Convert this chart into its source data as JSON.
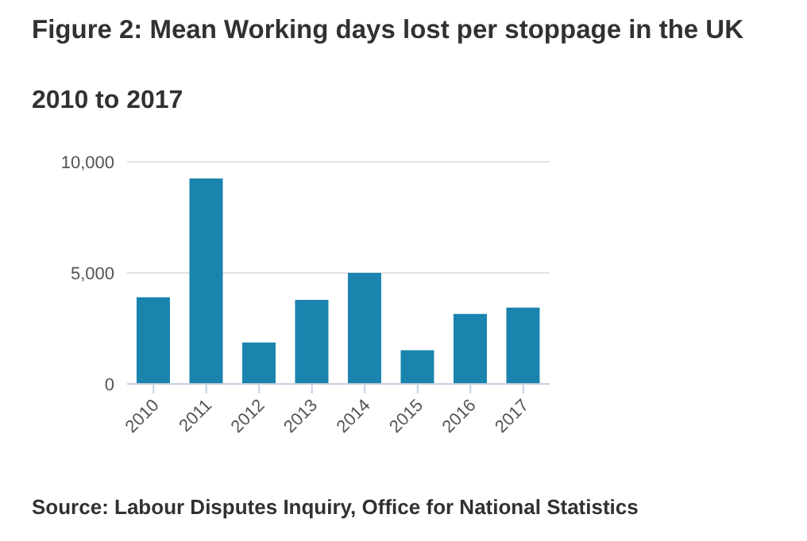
{
  "chart_data": {
    "type": "bar",
    "title": "Figure 2: Mean Working days lost per stoppage in the UK",
    "subtitle": "2010 to 2017",
    "categories": [
      "2010",
      "2011",
      "2012",
      "2013",
      "2014",
      "2015",
      "2016",
      "2017"
    ],
    "values": [
      3900,
      9250,
      1870,
      3790,
      5000,
      1520,
      3150,
      3440
    ],
    "color": "#1a84ae",
    "ylim": [
      0,
      10000
    ],
    "yticks": [
      {
        "value": 0,
        "label": "0"
      },
      {
        "value": 5000,
        "label": "5,000"
      },
      {
        "value": 10000,
        "label": "10,000"
      }
    ],
    "grid": "y",
    "annotations": [
      "Source: Labour Disputes Inquiry, Office for National Statistics"
    ]
  }
}
